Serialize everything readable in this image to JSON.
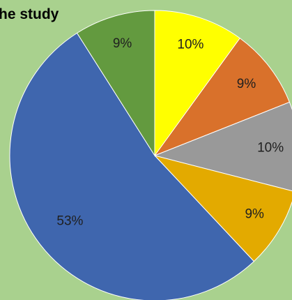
{
  "chart_data": {
    "type": "pie",
    "title": "he study",
    "slices": [
      {
        "label": "10%",
        "value": 10,
        "color": "#ffff00"
      },
      {
        "label": "9%",
        "value": 9,
        "color": "#d9712b"
      },
      {
        "label": "10%",
        "value": 10,
        "color": "#999999"
      },
      {
        "label": "9%",
        "value": 9,
        "color": "#e3aa00"
      },
      {
        "label": "53%",
        "value": 53,
        "color": "#3f66ae"
      },
      {
        "label": "9%",
        "value": 9,
        "color": "#639a3f"
      }
    ],
    "background": "#a9d18e"
  }
}
